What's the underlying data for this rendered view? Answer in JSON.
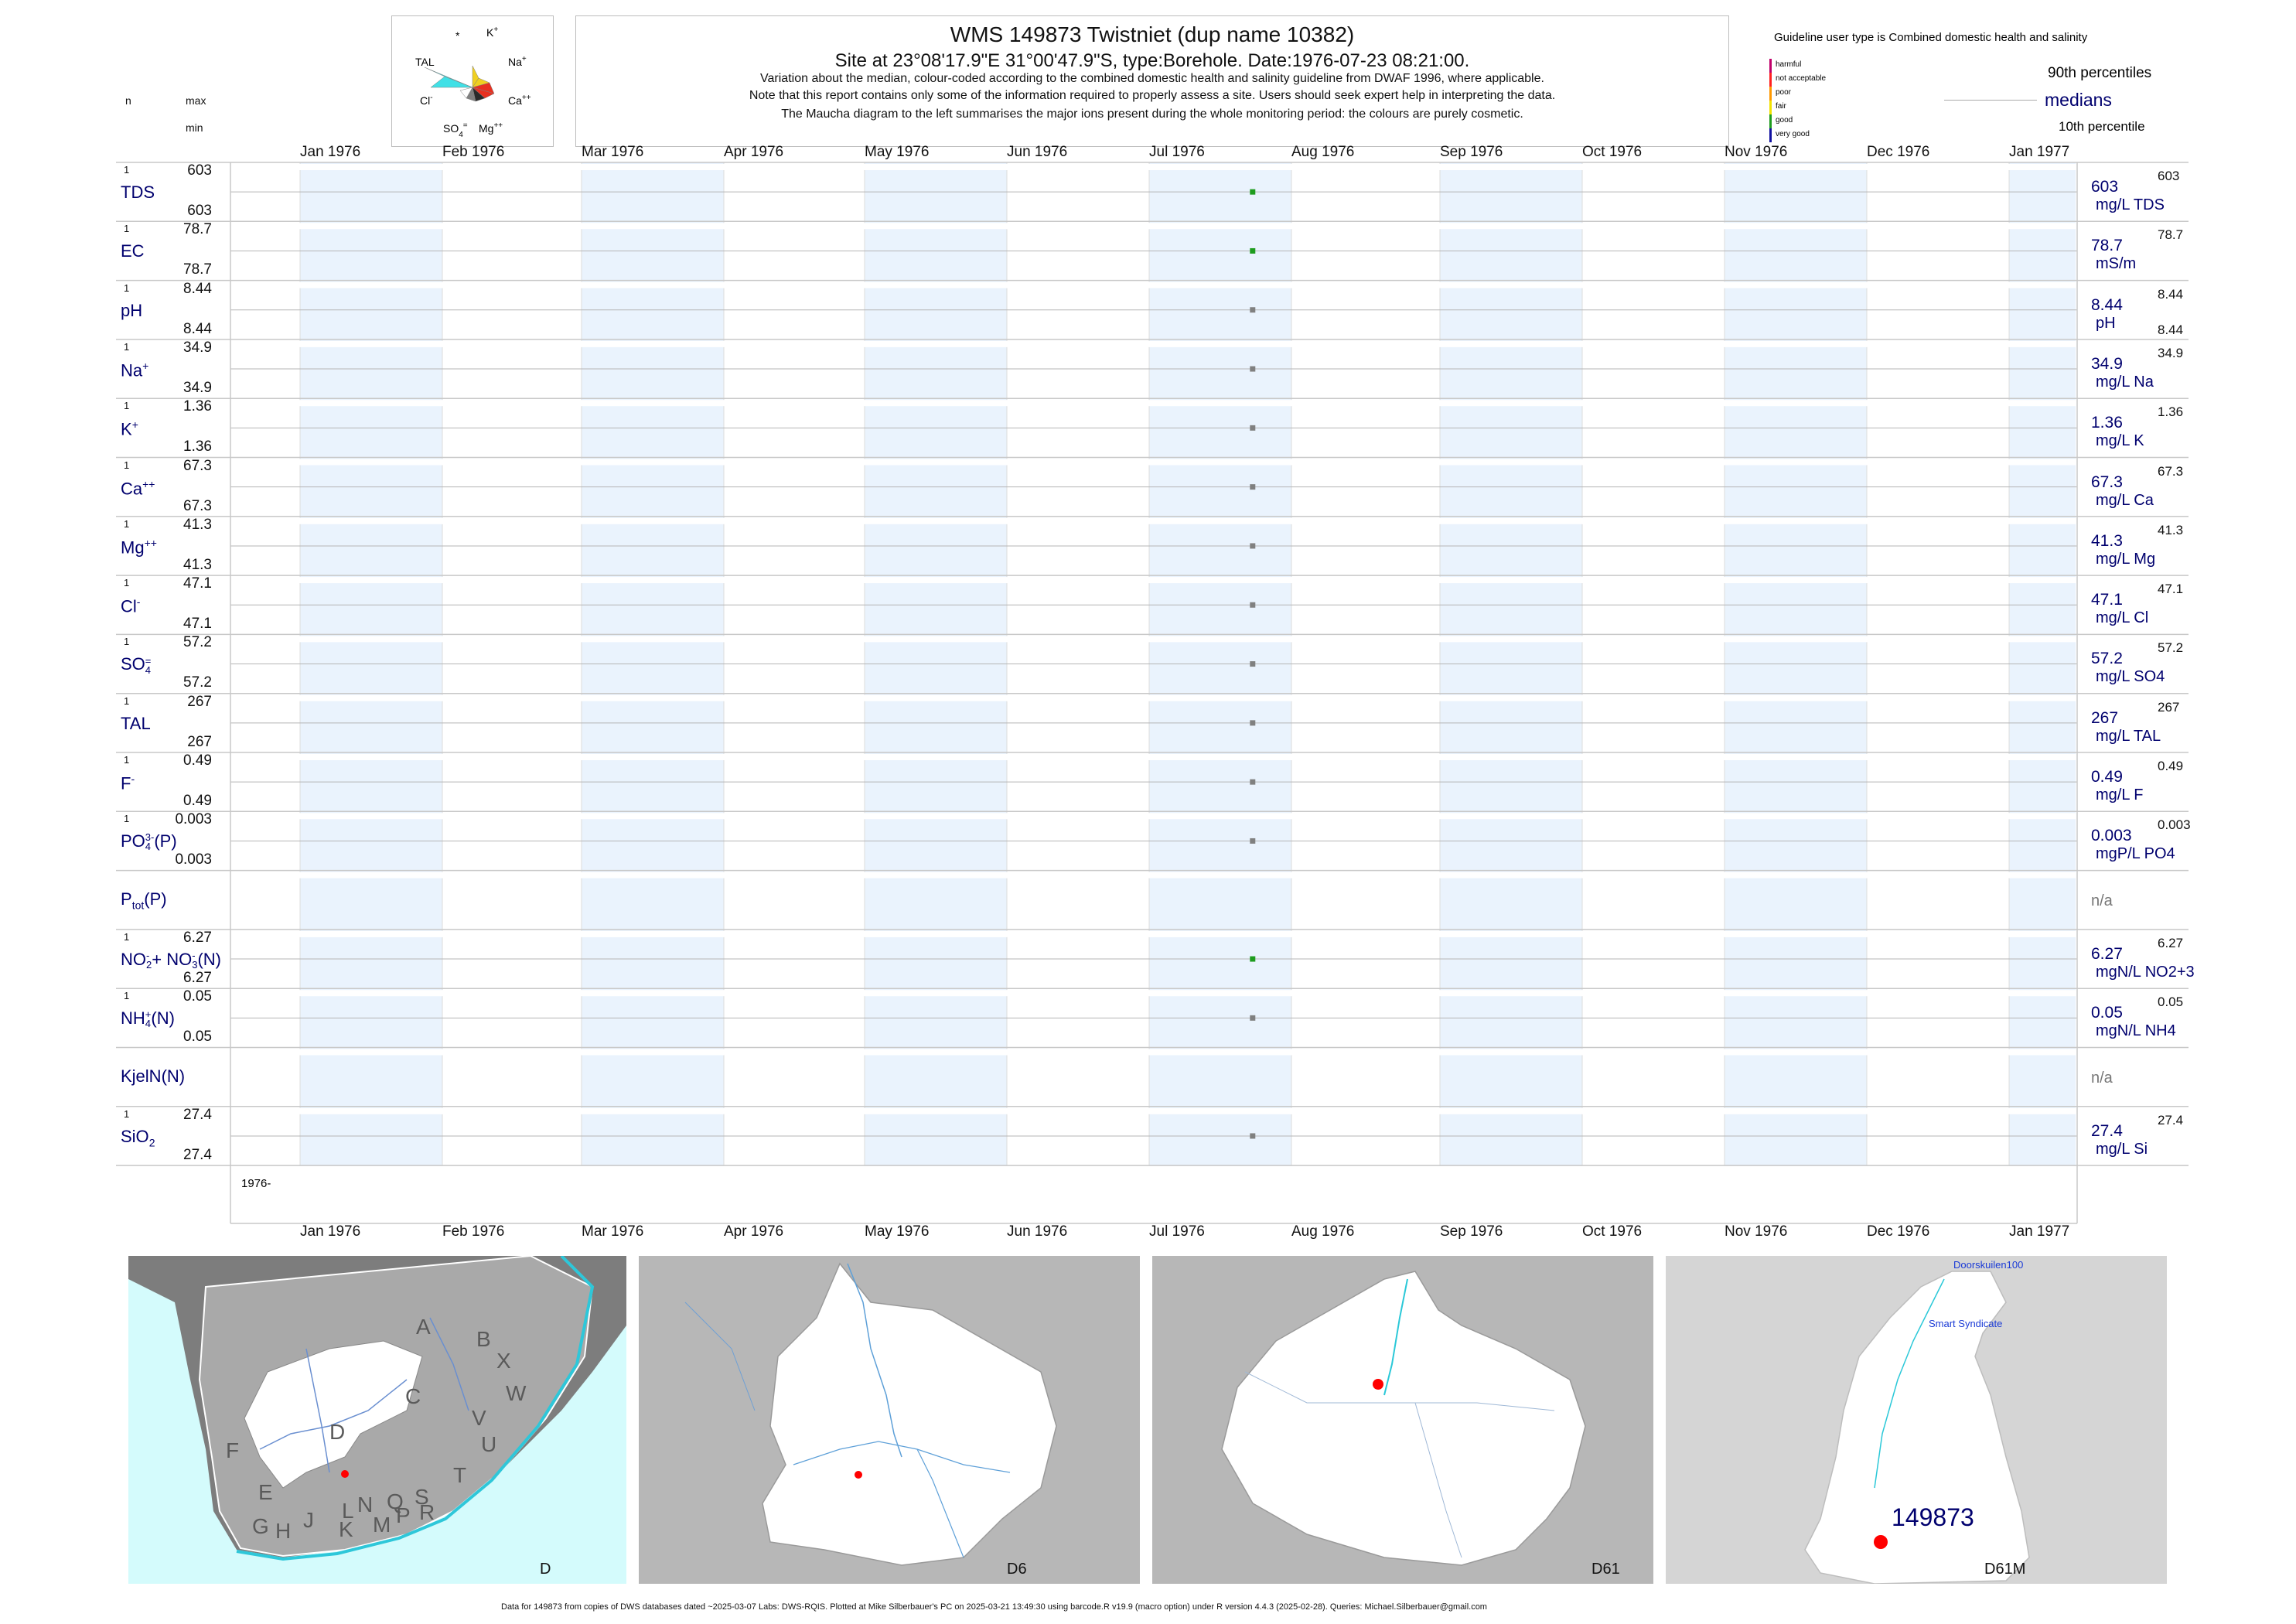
{
  "header": {
    "title": "WMS 149873  Twistniet (dup name 10382)",
    "subtitle": "Site at 23°08'17.9\"E 31°00'47.9\"S, type:Borehole. Date:1976-07-23 08:21:00.",
    "note1": "Variation about the median,  colour-coded according to the combined domestic health and salinity guideline from DWAF 1996, where applicable.",
    "note2": "Note that this report contains only some of the information required to properly assess a site. Users should seek expert help in interpreting the data.",
    "note3": "The Maucha diagram to the left summarises the major ions present during the whole monitoring period: the colours are purely cosmetic.",
    "col_n": "n",
    "col_max": "max",
    "col_min": "min"
  },
  "maucha": {
    "star": "*",
    "k": "K",
    "k_sup": "+",
    "tal": "TAL",
    "na": "Na",
    "na_sup": "+",
    "cl": "Cl",
    "cl_sup": "-",
    "ca": "Ca",
    "ca_sup": "++",
    "so4": "SO",
    "so4_sub": "4",
    "so4_sup": "=",
    "mg": "Mg",
    "mg_sup": "++",
    "colors": [
      "#40e0e6",
      "#f0d020",
      "#e83020",
      "#2a2a2a",
      "#808080",
      "#ffffff"
    ]
  },
  "legend": {
    "guideline_title": "Guideline user type is Combined domestic health and salinity",
    "levels": [
      {
        "label": "harmful",
        "color": "#c0006a"
      },
      {
        "label": "not acceptable",
        "color": "#ff2020"
      },
      {
        "label": "poor",
        "color": "#ff9900"
      },
      {
        "label": "fair",
        "color": "#f2e200"
      },
      {
        "label": "good",
        "color": "#1e9c1e"
      },
      {
        "label": "very good",
        "color": "#1010a0"
      }
    ],
    "p90": "90th percentiles",
    "medians": "medians",
    "p10": "10th percentile"
  },
  "axis": {
    "months_top": [
      "Jan 1976",
      "Feb 1976",
      "Mar 1976",
      "Apr 1976",
      "May 1976",
      "Jun 1976",
      "Jul 1976",
      "Aug 1976",
      "Sep 1976",
      "Oct 1976",
      "Nov 1976",
      "Dec 1976",
      "Jan 1977"
    ],
    "year_label": "1976-"
  },
  "chart_data": {
    "type": "scatter",
    "x_start": "1976-01-01",
    "x_end": "1977-01-01",
    "sample_date": "1976-07-23",
    "rows": [
      {
        "name": "TDS",
        "sup": "",
        "sub": "",
        "tail": "",
        "n": "1",
        "max": "603",
        "min": "603",
        "median": "603",
        "p90": "603",
        "p10": "",
        "unit": "mg/L TDS",
        "value": 603,
        "color": "#1e9c1e",
        "na": ""
      },
      {
        "name": "EC",
        "sup": "",
        "sub": "",
        "tail": "",
        "n": "1",
        "max": "78.7",
        "min": "78.7",
        "median": "78.7",
        "p90": "78.7",
        "p10": "",
        "unit": "mS/m",
        "value": 78.7,
        "color": "#1e9c1e",
        "na": ""
      },
      {
        "name": "pH",
        "sup": "",
        "sub": "",
        "tail": "",
        "n": "1",
        "max": "8.44",
        "min": "8.44",
        "median": "8.44",
        "p90": "8.44",
        "p10": "8.44",
        "unit": "pH",
        "value": 8.44,
        "color": "#808080",
        "na": ""
      },
      {
        "name": "Na",
        "sup": "+",
        "sub": "",
        "tail": "",
        "n": "1",
        "max": "34.9",
        "min": "34.9",
        "median": "34.9",
        "p90": "34.9",
        "p10": "",
        "unit": "mg/L Na",
        "value": 34.9,
        "color": "#808080",
        "na": ""
      },
      {
        "name": "K",
        "sup": "+",
        "sub": "",
        "tail": "",
        "n": "1",
        "max": "1.36",
        "min": "1.36",
        "median": "1.36",
        "p90": "1.36",
        "p10": "",
        "unit": "mg/L K",
        "value": 1.36,
        "color": "#808080",
        "na": ""
      },
      {
        "name": "Ca",
        "sup": "++",
        "sub": "",
        "tail": "",
        "n": "1",
        "max": "67.3",
        "min": "67.3",
        "median": "67.3",
        "p90": "67.3",
        "p10": "",
        "unit": "mg/L Ca",
        "value": 67.3,
        "color": "#808080",
        "na": ""
      },
      {
        "name": "Mg",
        "sup": "++",
        "sub": "",
        "tail": "",
        "n": "1",
        "max": "41.3",
        "min": "41.3",
        "median": "41.3",
        "p90": "41.3",
        "p10": "",
        "unit": "mg/L Mg",
        "value": 41.3,
        "color": "#808080",
        "na": ""
      },
      {
        "name": "Cl",
        "sup": "-",
        "sub": "",
        "tail": "",
        "n": "1",
        "max": "47.1",
        "min": "47.1",
        "median": "47.1",
        "p90": "47.1",
        "p10": "",
        "unit": "mg/L Cl",
        "value": 47.1,
        "color": "#808080",
        "na": ""
      },
      {
        "name": "SO",
        "sup": "=",
        "sub": "4",
        "tail": "",
        "n": "1",
        "max": "57.2",
        "min": "57.2",
        "median": "57.2",
        "p90": "57.2",
        "p10": "",
        "unit": "mg/L SO4",
        "value": 57.2,
        "color": "#808080",
        "na": ""
      },
      {
        "name": "TAL",
        "sup": "",
        "sub": "",
        "tail": "",
        "n": "1",
        "max": "267",
        "min": "267",
        "median": "267",
        "p90": "267",
        "p10": "",
        "unit": "mg/L TAL",
        "value": 267,
        "color": "#808080",
        "na": ""
      },
      {
        "name": "F",
        "sup": "-",
        "sub": "",
        "tail": "",
        "n": "1",
        "max": "0.49",
        "min": "0.49",
        "median": "0.49",
        "p90": "0.49",
        "p10": "",
        "unit": "mg/L F",
        "value": 0.49,
        "color": "#808080",
        "na": ""
      },
      {
        "name": "PO",
        "sup": "3-",
        "sub": "4",
        "tail": "(P)",
        "n": "1",
        "max": "0.003",
        "min": "0.003",
        "median": "0.003",
        "p90": "0.003",
        "p10": "",
        "unit": "mgP/L PO4",
        "value": 0.003,
        "color": "#808080",
        "na": ""
      },
      {
        "name": "P",
        "sup": "",
        "sub": "tot",
        "tail": "(P)",
        "n": "",
        "max": "",
        "min": "",
        "median": "",
        "p90": "",
        "p10": "",
        "unit": "",
        "value": null,
        "color": "",
        "na": "n/a"
      },
      {
        "name": "NO",
        "sup": "-",
        "sub": "2",
        "tail": "+ NO",
        "tail_sup": "-",
        "tail_sub": "3",
        "tail2": "(N)",
        "n": "1",
        "max": "6.27",
        "min": "6.27",
        "median": "6.27",
        "p90": "6.27",
        "p10": "",
        "unit": "mgN/L NO2+3",
        "value": 6.27,
        "color": "#1e9c1e",
        "na": ""
      },
      {
        "name": "NH",
        "sup": "+",
        "sub": "4",
        "tail": "(N)",
        "n": "1",
        "max": "0.05",
        "min": "0.05",
        "median": "0.05",
        "p90": "0.05",
        "p10": "",
        "unit": "mgN/L NH4",
        "value": 0.05,
        "color": "#808080",
        "na": ""
      },
      {
        "name": "KjelN(N)",
        "sup": "",
        "sub": "",
        "tail": "",
        "n": "",
        "max": "",
        "min": "",
        "median": "",
        "p90": "",
        "p10": "",
        "unit": "",
        "value": null,
        "color": "",
        "na": "n/a"
      },
      {
        "name": "SiO",
        "sup": "",
        "sub": "2",
        "tail": "",
        "n": "1",
        "max": "27.4",
        "min": "27.4",
        "median": "27.4",
        "p90": "27.4",
        "p10": "",
        "unit": "mg/L Si",
        "value": 27.4,
        "color": "#808080",
        "na": ""
      }
    ]
  },
  "maps": [
    {
      "label": "D",
      "letters": [
        "A",
        "B",
        "X",
        "W",
        "C",
        "V",
        "U",
        "D",
        "T",
        "F",
        "E",
        "G",
        "H",
        "J",
        "L",
        "N",
        "Q",
        "S",
        "K",
        "M",
        "P",
        "R"
      ]
    },
    {
      "label": "D6"
    },
    {
      "label": "D61"
    },
    {
      "label": "D61M",
      "site": "149873",
      "place1": "Doorskuilen100",
      "place2": "Smart Syndicate"
    }
  ],
  "footer": "Data for 149873 from copies of DWS databases dated ~2025-03-07 Labs: DWS-RQIS. Plotted at Mike Silberbauer's PC on 2025-03-21 13:49:30 using barcode.R v19.9 (macro option) under R version 4.4.3 (2025-02-28). Queries: Michael.Silberbauer@gmail.com"
}
